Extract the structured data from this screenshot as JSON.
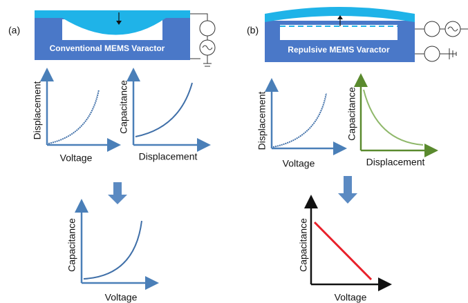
{
  "panels": [
    {
      "label": "(a)",
      "device": "Conventional MEMS Varactor",
      "plots": [
        {
          "y": "Displacement",
          "x": "Voltage"
        },
        {
          "y": "Capacitance",
          "x": "Displacement"
        },
        {
          "y": "Capacitance",
          "x": "Voltage"
        }
      ]
    },
    {
      "label": "(b)",
      "device": "Repulsive MEMS Varactor",
      "plots": [
        {
          "y": "Displacement",
          "x": "Voltage"
        },
        {
          "y": "Capacitance",
          "x": "Displacement"
        },
        {
          "y": "Capacitance",
          "x": "Voltage"
        }
      ]
    }
  ]
}
